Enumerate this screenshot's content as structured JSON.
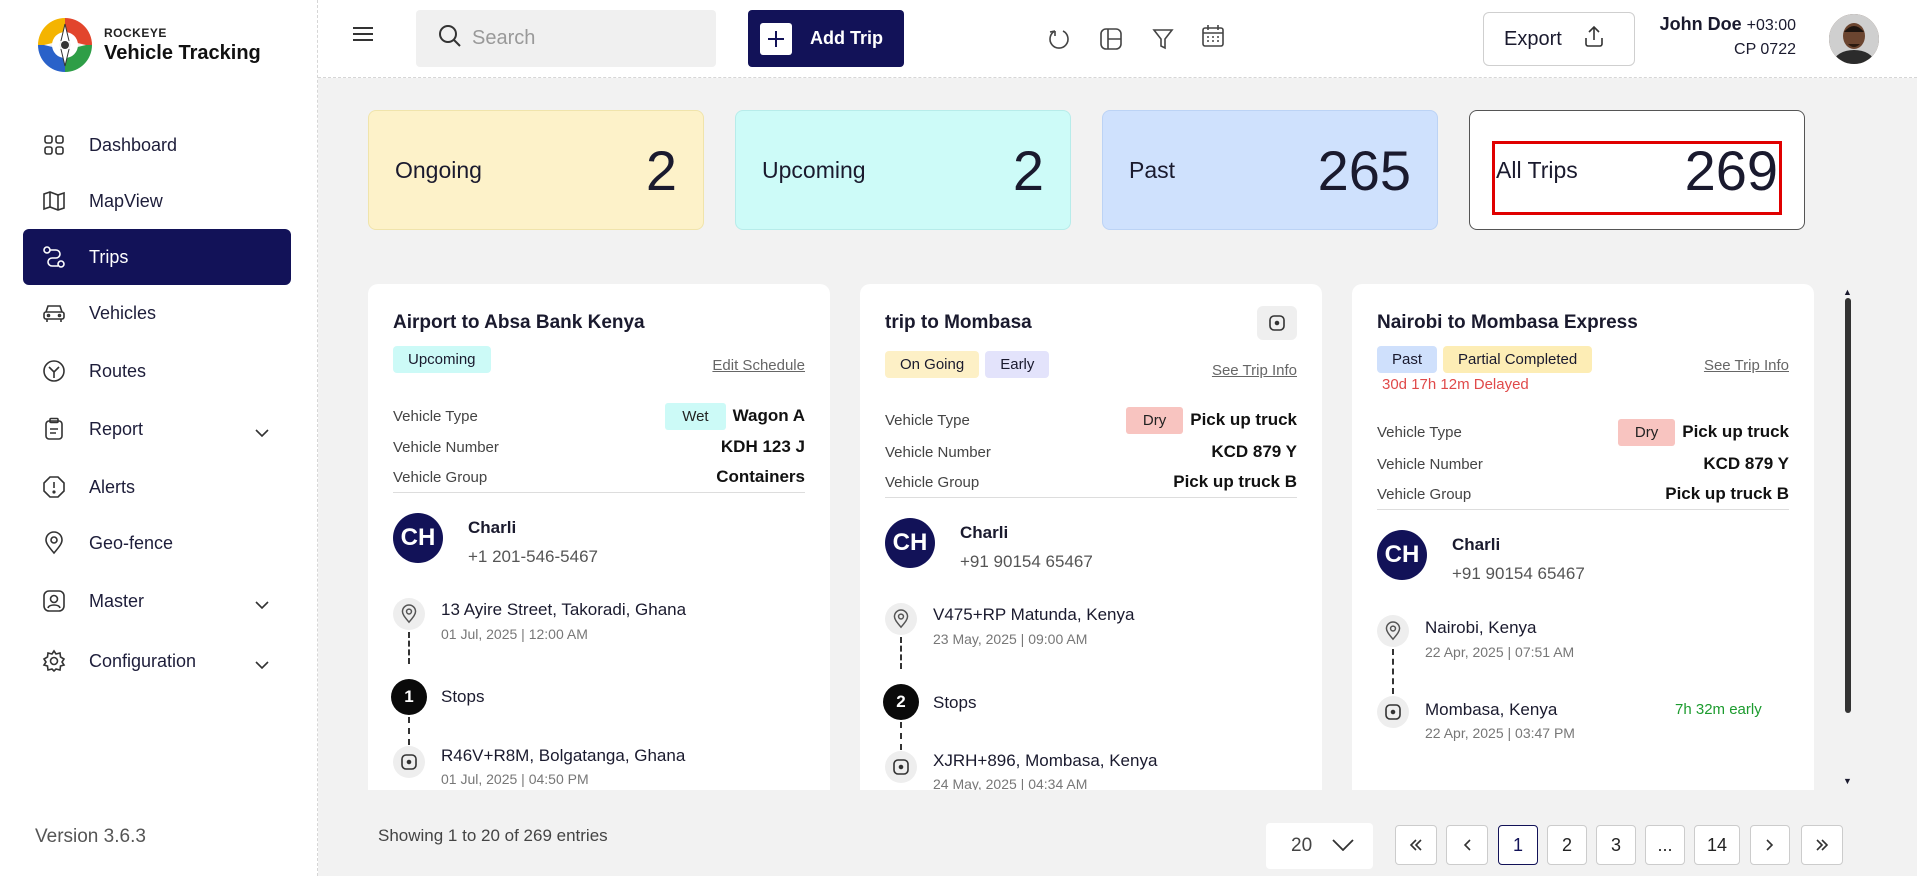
{
  "brand": {
    "line1": "ROCKEYE",
    "line2": "Vehicle Tracking"
  },
  "sidebar": {
    "items": [
      {
        "label": "Dashboard",
        "icon": "grid-icon"
      },
      {
        "label": "MapView",
        "icon": "map-icon"
      },
      {
        "label": "Trips",
        "icon": "route-icon",
        "active": true
      },
      {
        "label": "Vehicles",
        "icon": "car-icon"
      },
      {
        "label": "Routes",
        "icon": "routes-icon"
      },
      {
        "label": "Report",
        "icon": "clipboard-icon",
        "expandable": true
      },
      {
        "label": "Alerts",
        "icon": "alert-icon"
      },
      {
        "label": "Geo-fence",
        "icon": "location-pin-icon"
      },
      {
        "label": "Master",
        "icon": "user-badge-icon",
        "expandable": true
      },
      {
        "label": "Configuration",
        "icon": "gear-icon",
        "expandable": true
      }
    ],
    "version": "Version 3.6.3"
  },
  "header": {
    "search_placeholder": "Search",
    "add_trip_label": "Add Trip",
    "export_label": "Export",
    "icons": [
      "refresh-icon",
      "layout-icon",
      "filter-icon",
      "calendar-icon"
    ],
    "user": {
      "name": "John Doe",
      "timezone": "+03:00",
      "code": "CP 0722"
    }
  },
  "stats": {
    "ongoing": {
      "label": "Ongoing",
      "value": "2"
    },
    "upcoming": {
      "label": "Upcoming",
      "value": "2"
    },
    "past": {
      "label": "Past",
      "value": "265"
    },
    "all": {
      "label": "All Trips",
      "value": "269"
    }
  },
  "labels": {
    "vehicle_type": "Vehicle Type",
    "vehicle_number": "Vehicle Number",
    "vehicle_group": "Vehicle Group",
    "stops": "Stops"
  },
  "trips": [
    {
      "title": "Airport to Absa Bank Kenya",
      "badges": [
        "Upcoming"
      ],
      "link": "Edit Schedule",
      "vehicle_type_tag": "Wet",
      "vehicle_type": "Wagon A",
      "vehicle_number": "KDH 123 J",
      "vehicle_group": "Containers",
      "driver_initials": "CH",
      "driver_name": "Charli",
      "driver_phone": "+1 201-546-5467",
      "origin": "13 Ayire Street, Takoradi, Ghana",
      "origin_date": "01 Jul, 2025 | 12:00 AM",
      "stops_count": "1",
      "destination": "R46V+R8M, Bolgatanga, Ghana",
      "destination_date": "01 Jul, 2025 | 04:50 PM"
    },
    {
      "title": "trip to Mombasa",
      "badges": [
        "On Going",
        "Early"
      ],
      "link": "See Trip Info",
      "vehicle_type_tag": "Dry",
      "vehicle_type": "Pick up truck",
      "vehicle_number": "KCD 879 Y",
      "vehicle_group": "Pick up truck B",
      "driver_initials": "CH",
      "driver_name": "Charli",
      "driver_phone": "+91 90154 65467",
      "origin": "V475+RP Matunda, Kenya",
      "origin_date": "23 May, 2025 | 09:00 AM",
      "stops_count": "2",
      "destination": "XJRH+896, Mombasa, Kenya",
      "destination_date": "24 May, 2025 | 04:34 AM"
    },
    {
      "title": "Nairobi to Mombasa Express",
      "badges": [
        "Past",
        "Partial Completed"
      ],
      "delay": "30d 17h 12m Delayed",
      "link": "See Trip Info",
      "vehicle_type_tag": "Dry",
      "vehicle_type": "Pick up truck",
      "vehicle_number": "KCD 879 Y",
      "vehicle_group": "Pick up truck B",
      "driver_initials": "CH",
      "driver_name": "Charli",
      "driver_phone": "+91 90154 65467",
      "origin": "Nairobi, Kenya",
      "origin_date": "22 Apr, 2025 | 07:51 AM",
      "destination": "Mombasa, Kenya",
      "destination_date": "22 Apr, 2025 | 03:47 PM",
      "early_note": "7h 32m early"
    }
  ],
  "footer": {
    "showing": "Showing 1 to 20 of 269 entries",
    "per_page": "20",
    "pages": [
      "1",
      "2",
      "3",
      "...",
      "14"
    ],
    "current_page": "1"
  }
}
